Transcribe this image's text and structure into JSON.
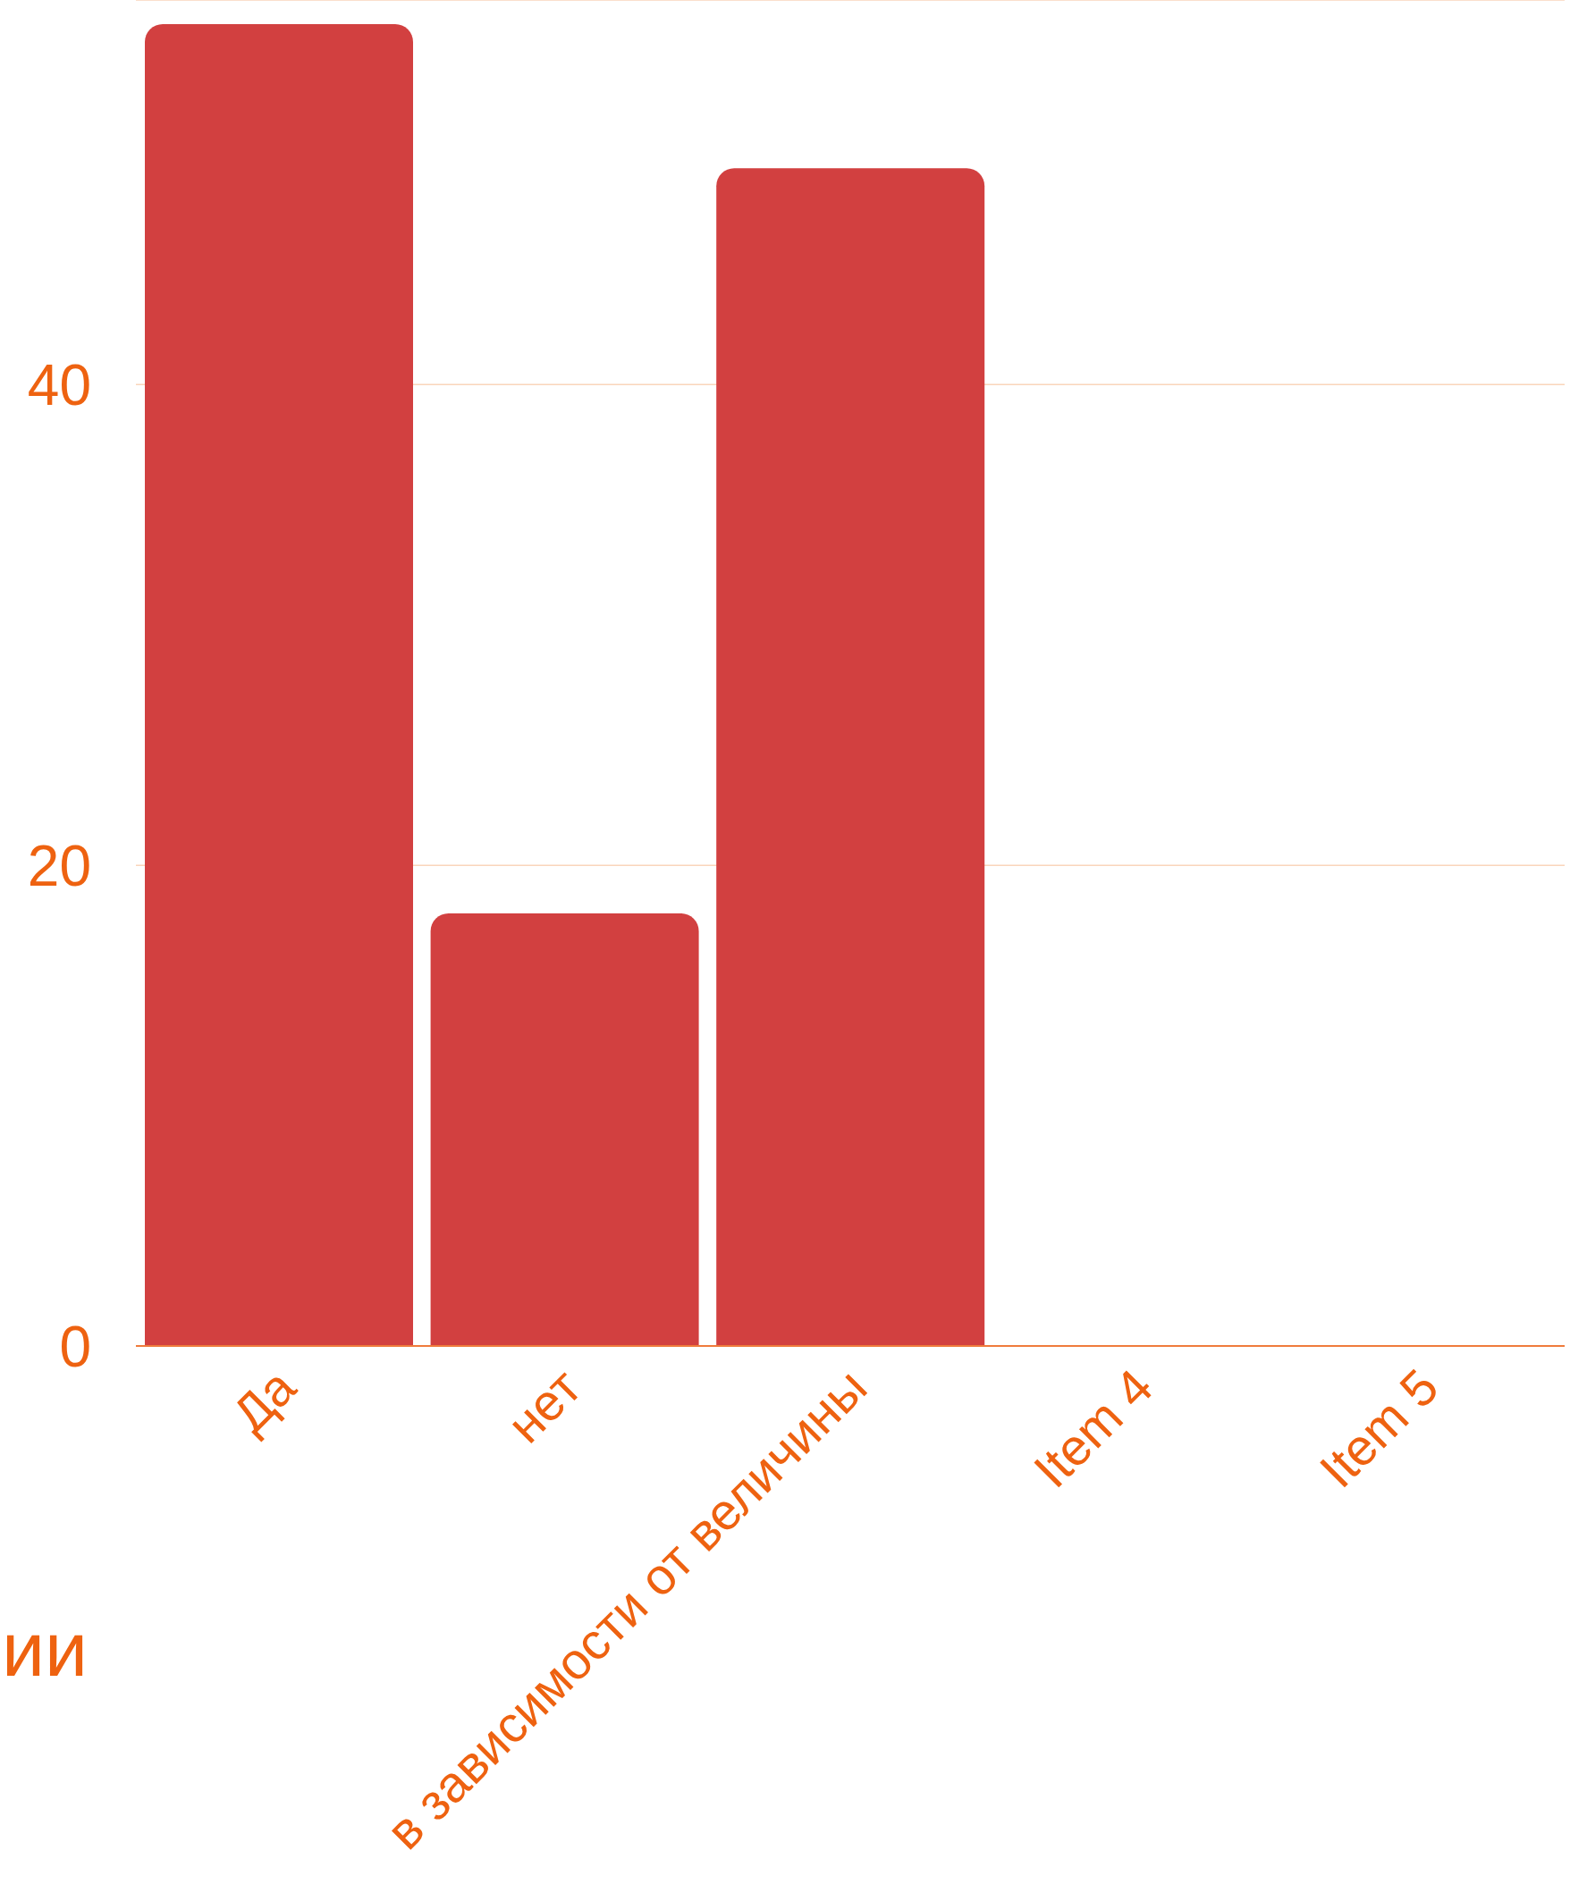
{
  "chart_data": {
    "type": "bar",
    "categories": [
      "Да",
      "нет",
      "в зависимости от величины",
      "Item 4",
      "Item 5"
    ],
    "values": [
      55,
      18,
      49,
      0,
      0
    ],
    "color": "#d24040",
    "ylim": [
      0,
      56
    ],
    "yticks": [
      0,
      20,
      40
    ],
    "grid": "y",
    "annotations": [
      "ии"
    ]
  }
}
